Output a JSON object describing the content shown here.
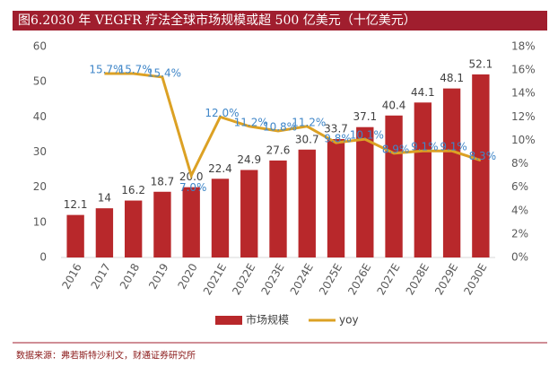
{
  "chart_data": {
    "type": "bar-line",
    "title": "图6.2030 年 VEGFR 疗法全球市场规模或超 500 亿美元（十亿美元）",
    "source": "数据来源：弗若斯特沙利文，财通证券研究所",
    "categories": [
      "2016",
      "2017",
      "2018",
      "2019",
      "2020",
      "2021E",
      "2022E",
      "2023E",
      "2024E",
      "2025E",
      "2026E",
      "2027E",
      "2028E",
      "2029E",
      "2030E"
    ],
    "series": [
      {
        "name": "市场规模",
        "color": "#b8282b",
        "kind": "bar",
        "values": [
          12.1,
          14,
          16.2,
          18.7,
          20,
          22.4,
          24.9,
          27.6,
          30.7,
          33.7,
          37.1,
          40.4,
          44.1,
          48.1,
          52.1
        ],
        "value_labels": [
          "12.1",
          "14",
          "16.2",
          "18.7",
          "20.0",
          "22.4",
          "24.9",
          "27.6",
          "30.7",
          "33.7",
          "37.1",
          "40.4",
          "44.1",
          "48.1",
          "52.1"
        ]
      },
      {
        "name": "yoy",
        "color": "#dca124",
        "kind": "line",
        "axis": "y2",
        "label_color": "#3f86c8",
        "values": [
          null,
          15.7,
          15.7,
          15.4,
          7,
          12,
          11.2,
          10.8,
          11.2,
          9.8,
          10.1,
          8.9,
          9.1,
          9.1,
          8.3
        ],
        "value_labels": [
          null,
          "15.7%",
          "15.7%",
          "15.4%",
          "7.0%",
          "12.0%",
          "11.2%",
          "10.8%",
          "11.2%",
          "9.8%",
          "10.1%",
          "8.9%",
          "9.1%",
          "9.1%",
          "8.3%"
        ]
      }
    ],
    "ylim": [
      0,
      60
    ],
    "yticks": [
      0,
      10,
      20,
      30,
      40,
      50,
      60
    ],
    "y2lim": [
      0,
      18
    ],
    "y2ticks": [
      {
        "value": 0,
        "label": "0%"
      },
      {
        "value": 2,
        "label": "2%"
      },
      {
        "value": 4,
        "label": "4%"
      },
      {
        "value": 6,
        "label": "6%"
      },
      {
        "value": 8,
        "label": "8%"
      },
      {
        "value": 10,
        "label": "10%"
      },
      {
        "value": 12,
        "label": "12%"
      },
      {
        "value": 14,
        "label": "14%"
      },
      {
        "value": 16,
        "label": "16%"
      },
      {
        "value": 18,
        "label": "18%"
      }
    ],
    "grid": false,
    "legend": "bottom"
  }
}
